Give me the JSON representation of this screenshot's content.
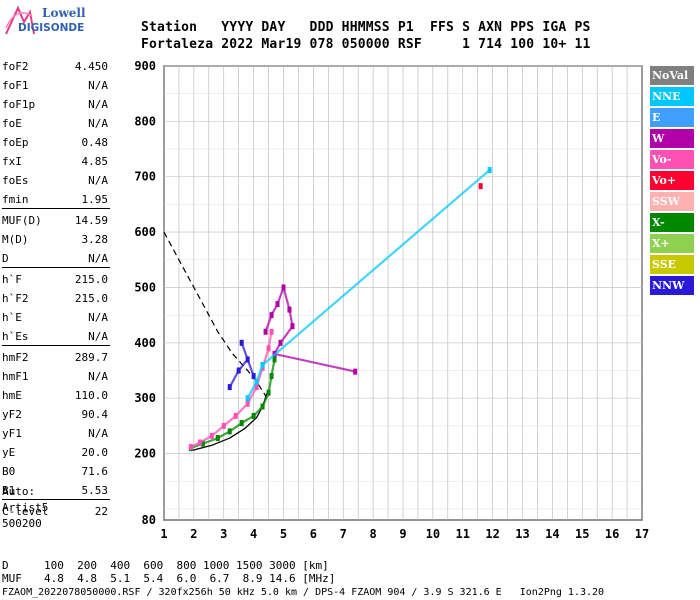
{
  "logo": {
    "line1": "Lowell",
    "line2": "DIGISONDE"
  },
  "header": {
    "row1": "Station   YYYY DAY   DDD HHMMSS P1  FFS S AXN PPS IGA PS",
    "row2": "Fortaleza 2022 Mar19 078 050000 RSF     1 714 100 10+ 11"
  },
  "params": [
    {
      "k": "foF2",
      "v": "4.450"
    },
    {
      "k": "foF1",
      "v": "N/A"
    },
    {
      "k": "foF1p",
      "v": "N/A"
    },
    {
      "k": "foE",
      "v": "N/A"
    },
    {
      "k": "foEp",
      "v": "0.48"
    },
    {
      "k": "fxI",
      "v": "4.85"
    },
    {
      "k": "foEs",
      "v": "N/A"
    },
    {
      "k": "fmin",
      "v": "1.95"
    },
    {
      "k": "MUF(D)",
      "v": "14.59"
    },
    {
      "k": "M(D)",
      "v": "3.28"
    },
    {
      "k": "D",
      "v": "N/A"
    },
    {
      "k": "h`F",
      "v": "215.0"
    },
    {
      "k": "h`F2",
      "v": "215.0"
    },
    {
      "k": "h`E",
      "v": "N/A"
    },
    {
      "k": "h`Es",
      "v": "N/A"
    },
    {
      "k": "hmF2",
      "v": "289.7"
    },
    {
      "k": "hmF1",
      "v": "N/A"
    },
    {
      "k": "hmE",
      "v": "110.0"
    },
    {
      "k": "yF2",
      "v": "90.4"
    },
    {
      "k": "yF1",
      "v": "N/A"
    },
    {
      "k": "yE",
      "v": "20.0"
    },
    {
      "k": "B0",
      "v": "71.6"
    },
    {
      "k": "B1",
      "v": "5.53"
    },
    {
      "k": "C-level",
      "v": "22"
    }
  ],
  "auto": {
    "l1": "Auto:",
    "l2": "Artist5",
    "l3": "500200"
  },
  "legend": [
    {
      "label": "NoVal",
      "color": "#808080"
    },
    {
      "label": "NNE",
      "color": "#00c8ff"
    },
    {
      "label": "E",
      "color": "#3f9fff"
    },
    {
      "label": "W",
      "color": "#b000a8"
    },
    {
      "label": "Vo-",
      "color": "#ff50b4"
    },
    {
      "label": "Vo+",
      "color": "#ff0030"
    },
    {
      "label": "SSW",
      "color": "#ffb0b0"
    },
    {
      "label": "X-",
      "color": "#008800"
    },
    {
      "label": "X+",
      "color": "#90d050"
    },
    {
      "label": "SSE",
      "color": "#c8c800"
    },
    {
      "label": "NNW",
      "color": "#2a1ad8"
    }
  ],
  "chart_data": {
    "type": "scatter",
    "xlim": [
      1,
      17
    ],
    "ylim": [
      80,
      900
    ],
    "x_ticks": [
      "1",
      "2",
      "3",
      "4",
      "5",
      "6",
      "7",
      "8",
      "9",
      "10",
      "11",
      "12",
      "13",
      "14",
      "15",
      "16",
      "17"
    ],
    "y_ticks": [
      "80",
      "200",
      "300",
      "400",
      "500",
      "600",
      "700",
      "800",
      "900"
    ],
    "grid": true,
    "legend_position": "right",
    "traces": [
      {
        "name": "X-",
        "color": "#008800",
        "points": [
          [
            1.9,
            210
          ],
          [
            2.3,
            218
          ],
          [
            2.8,
            228
          ],
          [
            3.2,
            240
          ],
          [
            3.6,
            255
          ],
          [
            4.0,
            268
          ],
          [
            4.3,
            285
          ],
          [
            4.5,
            310
          ],
          [
            4.6,
            340
          ],
          [
            4.7,
            370
          ]
        ]
      },
      {
        "name": "Vo-",
        "color": "#ff50b4",
        "points": [
          [
            1.9,
            212
          ],
          [
            2.2,
            220
          ],
          [
            2.6,
            232
          ],
          [
            3.0,
            250
          ],
          [
            3.4,
            268
          ],
          [
            3.8,
            290
          ],
          [
            4.1,
            320
          ],
          [
            4.3,
            355
          ],
          [
            4.5,
            390
          ],
          [
            4.6,
            420
          ]
        ]
      },
      {
        "name": "W",
        "color": "#b000a8",
        "points": [
          [
            4.4,
            420
          ],
          [
            4.6,
            450
          ],
          [
            4.8,
            470
          ],
          [
            5.0,
            500
          ],
          [
            5.2,
            460
          ],
          [
            5.3,
            430
          ],
          [
            4.9,
            400
          ],
          [
            4.7,
            380
          ],
          [
            7.4,
            348
          ]
        ]
      },
      {
        "name": "NNW",
        "color": "#2a1ad8",
        "points": [
          [
            3.2,
            320
          ],
          [
            3.5,
            350
          ],
          [
            3.8,
            370
          ],
          [
            4.0,
            340
          ],
          [
            3.6,
            400
          ]
        ]
      },
      {
        "name": "NNE",
        "color": "#00c8ff",
        "points": [
          [
            3.8,
            300
          ],
          [
            4.1,
            330
          ],
          [
            4.3,
            360
          ],
          [
            11.9,
            712
          ]
        ]
      },
      {
        "name": "Vo+",
        "color": "#ff0030",
        "points": [
          [
            11.6,
            683
          ]
        ]
      }
    ],
    "profile": {
      "color": "#000000",
      "points": [
        [
          1.9,
          205
        ],
        [
          2.6,
          215
        ],
        [
          3.2,
          228
        ],
        [
          3.7,
          245
        ],
        [
          4.1,
          265
        ],
        [
          4.3,
          285
        ],
        [
          4.45,
          310
        ]
      ]
    },
    "dashed_profile": {
      "color": "#000000",
      "points": [
        [
          1.0,
          600
        ],
        [
          1.6,
          540
        ],
        [
          2.2,
          480
        ],
        [
          2.8,
          420
        ],
        [
          3.3,
          380
        ],
        [
          3.8,
          350
        ],
        [
          4.1,
          330
        ],
        [
          4.45,
          300
        ]
      ]
    }
  },
  "footer": {
    "d_label": "D",
    "d_values": "100  200  400  600  800 1000 1500 3000 [km]",
    "muf_label": "MUF",
    "muf_values": "4.8  4.8  5.1  5.4  6.0  6.7  8.9 14.6 [MHz]",
    "info": "FZAOM_2022078050000.RSF / 320fx256h 50 kHz 5.0 km / DPS-4 FZAOM 904 / 3.9 S 321.6 E   Ion2Png 1.3.20"
  }
}
